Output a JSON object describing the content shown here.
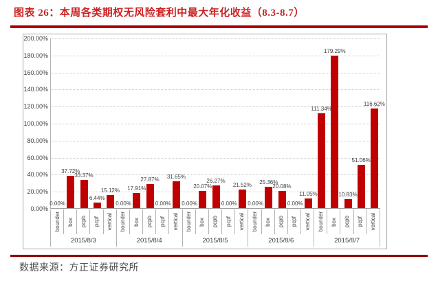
{
  "header": {
    "title": "图表 26：本周各类期权无风险套利中最大年化收益（8.3-8.7）"
  },
  "footer": {
    "source": "数据来源：方正证券研究所"
  },
  "colors": {
    "title_red": "#cc2222",
    "top_rule_red": "#a80000",
    "bottom_rule_red": "#8e0000",
    "bar_red": "#c00000",
    "text_gray": "#404040",
    "frame_gray": "#a6a6a6",
    "grid_gray": "#c9c9c9"
  },
  "chart_data": {
    "type": "bar",
    "title": "",
    "xlabel": "",
    "ylabel": "",
    "ylim_percent": [
      0,
      200
    ],
    "ytick_step_percent": 20,
    "ytick_labels": [
      "0.00%",
      "20.00%",
      "40.00%",
      "60.00%",
      "80.00%",
      "100.00%",
      "120.00%",
      "140.00%",
      "160.00%",
      "180.00%",
      "200.00%"
    ],
    "grid": "horizontal-dotted",
    "legend": "none",
    "bar_color": "#c00000",
    "data_label_format": "0.00%",
    "category_labels": [
      "bounder",
      "box",
      "pcpb",
      "pcpf",
      "vertical"
    ],
    "groups": [
      {
        "label": "2015/8/3",
        "values_percent": [
          0.0,
          37.72,
          33.37,
          6.44,
          15.12
        ]
      },
      {
        "label": "2015/8/4",
        "values_percent": [
          0.0,
          17.91,
          27.87,
          0.0,
          31.65
        ]
      },
      {
        "label": "2015/8/5",
        "values_percent": [
          0.0,
          20.07,
          26.27,
          0.0,
          21.52
        ]
      },
      {
        "label": "2015/8/6",
        "values_percent": [
          0.0,
          25.36,
          20.08,
          0.0,
          11.05
        ]
      },
      {
        "label": "2015/8/7",
        "values_percent": [
          111.34,
          179.29,
          10.83,
          51.06,
          116.62
        ]
      }
    ]
  }
}
